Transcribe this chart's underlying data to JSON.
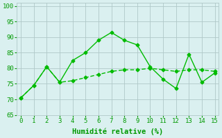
{
  "line1_x": [
    0,
    1,
    2,
    3,
    4,
    5,
    6,
    7,
    8,
    9,
    10,
    11,
    12,
    13,
    14,
    15
  ],
  "line1_y": [
    70.5,
    74.5,
    80.5,
    75.5,
    82.5,
    85.0,
    89.0,
    91.5,
    89.0,
    87.5,
    80.5,
    76.5,
    73.5,
    84.5,
    75.5,
    78.5
  ],
  "line2_x": [
    0,
    1,
    2,
    3,
    4,
    5,
    6,
    7,
    8,
    9,
    10,
    11,
    12,
    13,
    14,
    15
  ],
  "line2_y": [
    70.5,
    74.5,
    80.5,
    75.5,
    76.0,
    77.0,
    78.0,
    79.0,
    79.5,
    79.5,
    80.0,
    79.5,
    79.0,
    79.5,
    79.5,
    79.0
  ],
  "color": "#00bb00",
  "bg_color": "#daf0f0",
  "grid_color": "#b0c8c8",
  "xlabel": "Humidité relative (%)",
  "xlim": [
    -0.3,
    15.3
  ],
  "ylim": [
    65,
    101
  ],
  "yticks": [
    65,
    70,
    75,
    80,
    85,
    90,
    95,
    100
  ],
  "xticks": [
    0,
    1,
    2,
    3,
    4,
    5,
    6,
    7,
    8,
    9,
    10,
    11,
    12,
    13,
    14,
    15
  ],
  "xlabel_color": "#009900",
  "xlabel_fontsize": 7.5,
  "tick_color": "#009900",
  "tick_fontsize": 6.5,
  "marker": "D",
  "markersize": 2.5,
  "linewidth": 1.0
}
